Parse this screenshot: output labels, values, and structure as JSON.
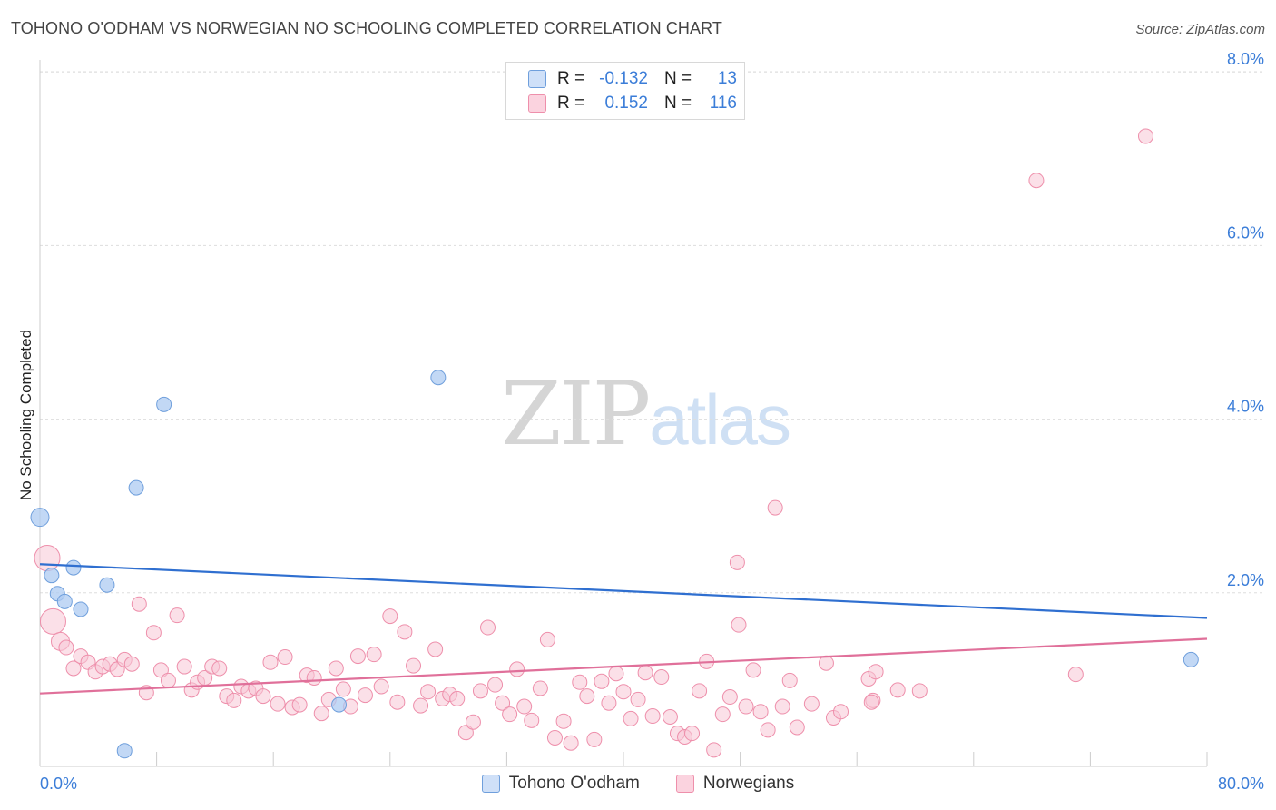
{
  "header": {
    "title": "TOHONO O'ODHAM VS NORWEGIAN NO SCHOOLING COMPLETED CORRELATION CHART",
    "source": "Source: ZipAtlas.com"
  },
  "watermark": {
    "part1": "ZIP",
    "part2": "atlas"
  },
  "legend": {
    "rows": [
      {
        "r_label": "R =",
        "r_value": "-0.132",
        "n_label": "N =",
        "n_value": "13",
        "color": "#aecbf2"
      },
      {
        "r_label": "R =",
        "r_value": "0.152",
        "n_label": "N =",
        "n_value": "116",
        "color": "#f8bfd0"
      }
    ]
  },
  "bottom_legend": {
    "items": [
      {
        "label": "Tohono O'odham",
        "color": "#aecbf2"
      },
      {
        "label": "Norwegians",
        "color": "#f8bfd0"
      }
    ]
  },
  "chart_data": {
    "type": "scatter",
    "title": "TOHONO O'ODHAM VS NORWEGIAN NO SCHOOLING COMPLETED CORRELATION CHART",
    "xlabel": "",
    "ylabel": "No Schooling Completed",
    "xlim": [
      0,
      80
    ],
    "ylim": [
      0,
      8.4
    ],
    "x_tick_labels": [
      "0.0%",
      "80.0%"
    ],
    "y_ticks": [
      2,
      4,
      6,
      8
    ],
    "y_tick_labels": [
      "2.0%",
      "4.0%",
      "6.0%",
      "8.0%"
    ],
    "grid": true,
    "colors": {
      "tohono_fill": "#aecbf2",
      "tohono_stroke": "#6f9fdc",
      "tohono_line": "#2f6fd0",
      "norw_fill": "#f8c6d5",
      "norw_stroke": "#ee8fab",
      "norw_line": "#e0709a",
      "axis": "#cccccc",
      "grid": "#dddddd"
    },
    "series": [
      {
        "name": "Tohono O'odham",
        "trend": {
          "x": [
            0,
            80
          ],
          "y": [
            2.33,
            1.71
          ]
        },
        "points": [
          {
            "x": 0.0,
            "y": 2.87,
            "s": 2
          },
          {
            "x": 0.8,
            "y": 2.2,
            "s": 1
          },
          {
            "x": 1.2,
            "y": 1.99,
            "s": 1
          },
          {
            "x": 1.7,
            "y": 1.9,
            "s": 1
          },
          {
            "x": 2.3,
            "y": 2.29,
            "s": 1
          },
          {
            "x": 2.8,
            "y": 1.81,
            "s": 1
          },
          {
            "x": 4.6,
            "y": 2.09,
            "s": 1
          },
          {
            "x": 5.8,
            "y": 0.18,
            "s": 1
          },
          {
            "x": 6.6,
            "y": 3.21,
            "s": 1
          },
          {
            "x": 8.5,
            "y": 4.17,
            "s": 1
          },
          {
            "x": 20.5,
            "y": 0.71,
            "s": 1
          },
          {
            "x": 27.3,
            "y": 4.48,
            "s": 1
          },
          {
            "x": 78.9,
            "y": 1.23,
            "s": 1
          }
        ]
      },
      {
        "name": "Norwegians",
        "trend": {
          "x": [
            0,
            80
          ],
          "y": [
            0.84,
            1.47
          ]
        },
        "points": [
          {
            "x": 0.5,
            "y": 2.4,
            "s": 3
          },
          {
            "x": 0.9,
            "y": 1.67,
            "s": 3
          },
          {
            "x": 1.4,
            "y": 1.44,
            "s": 2
          },
          {
            "x": 1.8,
            "y": 1.37,
            "s": 1
          },
          {
            "x": 2.3,
            "y": 1.13,
            "s": 1
          },
          {
            "x": 2.8,
            "y": 1.27,
            "s": 1
          },
          {
            "x": 3.3,
            "y": 1.2,
            "s": 1
          },
          {
            "x": 3.8,
            "y": 1.09,
            "s": 1
          },
          {
            "x": 4.3,
            "y": 1.15,
            "s": 1
          },
          {
            "x": 4.8,
            "y": 1.18,
            "s": 1
          },
          {
            "x": 5.3,
            "y": 1.12,
            "s": 1
          },
          {
            "x": 5.8,
            "y": 1.23,
            "s": 1
          },
          {
            "x": 6.3,
            "y": 1.18,
            "s": 1
          },
          {
            "x": 6.8,
            "y": 1.87,
            "s": 1
          },
          {
            "x": 7.3,
            "y": 0.85,
            "s": 1
          },
          {
            "x": 7.8,
            "y": 1.54,
            "s": 1
          },
          {
            "x": 8.3,
            "y": 1.11,
            "s": 1
          },
          {
            "x": 8.8,
            "y": 0.99,
            "s": 1
          },
          {
            "x": 9.4,
            "y": 1.74,
            "s": 1
          },
          {
            "x": 9.9,
            "y": 1.15,
            "s": 1
          },
          {
            "x": 10.4,
            "y": 0.88,
            "s": 1
          },
          {
            "x": 10.8,
            "y": 0.97,
            "s": 1
          },
          {
            "x": 11.3,
            "y": 1.02,
            "s": 1
          },
          {
            "x": 11.8,
            "y": 1.15,
            "s": 1
          },
          {
            "x": 12.3,
            "y": 1.13,
            "s": 1
          },
          {
            "x": 12.8,
            "y": 0.81,
            "s": 1
          },
          {
            "x": 13.3,
            "y": 0.76,
            "s": 1
          },
          {
            "x": 13.8,
            "y": 0.92,
            "s": 1
          },
          {
            "x": 14.3,
            "y": 0.87,
            "s": 1
          },
          {
            "x": 14.8,
            "y": 0.9,
            "s": 1
          },
          {
            "x": 15.3,
            "y": 0.81,
            "s": 1
          },
          {
            "x": 15.8,
            "y": 1.2,
            "s": 1
          },
          {
            "x": 16.3,
            "y": 0.72,
            "s": 1
          },
          {
            "x": 16.8,
            "y": 1.26,
            "s": 1
          },
          {
            "x": 17.3,
            "y": 0.68,
            "s": 1
          },
          {
            "x": 17.8,
            "y": 0.71,
            "s": 1
          },
          {
            "x": 18.3,
            "y": 1.05,
            "s": 1
          },
          {
            "x": 18.8,
            "y": 1.02,
            "s": 1
          },
          {
            "x": 19.3,
            "y": 0.61,
            "s": 1
          },
          {
            "x": 19.8,
            "y": 0.77,
            "s": 1
          },
          {
            "x": 20.3,
            "y": 1.13,
            "s": 1
          },
          {
            "x": 20.8,
            "y": 0.89,
            "s": 1
          },
          {
            "x": 21.3,
            "y": 0.69,
            "s": 1
          },
          {
            "x": 21.8,
            "y": 1.27,
            "s": 1
          },
          {
            "x": 22.3,
            "y": 0.82,
            "s": 1
          },
          {
            "x": 22.9,
            "y": 1.29,
            "s": 1
          },
          {
            "x": 23.4,
            "y": 0.92,
            "s": 1
          },
          {
            "x": 24.0,
            "y": 1.73,
            "s": 1
          },
          {
            "x": 24.5,
            "y": 0.74,
            "s": 1
          },
          {
            "x": 25.0,
            "y": 1.55,
            "s": 1
          },
          {
            "x": 25.6,
            "y": 1.16,
            "s": 1
          },
          {
            "x": 26.1,
            "y": 0.7,
            "s": 1
          },
          {
            "x": 26.6,
            "y": 0.86,
            "s": 1
          },
          {
            "x": 27.1,
            "y": 1.35,
            "s": 1
          },
          {
            "x": 27.6,
            "y": 0.78,
            "s": 1
          },
          {
            "x": 28.1,
            "y": 0.83,
            "s": 1
          },
          {
            "x": 28.6,
            "y": 0.78,
            "s": 1
          },
          {
            "x": 29.2,
            "y": 0.39,
            "s": 1
          },
          {
            "x": 29.7,
            "y": 0.51,
            "s": 1
          },
          {
            "x": 30.2,
            "y": 0.87,
            "s": 1
          },
          {
            "x": 30.7,
            "y": 1.6,
            "s": 1
          },
          {
            "x": 31.2,
            "y": 0.94,
            "s": 1
          },
          {
            "x": 31.7,
            "y": 0.73,
            "s": 1
          },
          {
            "x": 32.2,
            "y": 0.6,
            "s": 1
          },
          {
            "x": 32.7,
            "y": 1.12,
            "s": 1
          },
          {
            "x": 33.2,
            "y": 0.69,
            "s": 1
          },
          {
            "x": 33.7,
            "y": 0.53,
            "s": 1
          },
          {
            "x": 34.3,
            "y": 0.9,
            "s": 1
          },
          {
            "x": 34.8,
            "y": 1.46,
            "s": 1
          },
          {
            "x": 35.3,
            "y": 0.33,
            "s": 1
          },
          {
            "x": 35.9,
            "y": 0.52,
            "s": 1
          },
          {
            "x": 36.4,
            "y": 0.27,
            "s": 1
          },
          {
            "x": 37.0,
            "y": 0.97,
            "s": 1
          },
          {
            "x": 37.5,
            "y": 0.81,
            "s": 1
          },
          {
            "x": 38.0,
            "y": 0.31,
            "s": 1
          },
          {
            "x": 38.5,
            "y": 0.98,
            "s": 1
          },
          {
            "x": 39.0,
            "y": 0.73,
            "s": 1
          },
          {
            "x": 39.5,
            "y": 1.07,
            "s": 1
          },
          {
            "x": 40.0,
            "y": 0.86,
            "s": 1
          },
          {
            "x": 40.5,
            "y": 0.55,
            "s": 1
          },
          {
            "x": 41.0,
            "y": 0.77,
            "s": 1
          },
          {
            "x": 41.5,
            "y": 1.08,
            "s": 1
          },
          {
            "x": 42.0,
            "y": 0.58,
            "s": 1
          },
          {
            "x": 42.6,
            "y": 1.03,
            "s": 1
          },
          {
            "x": 43.2,
            "y": 0.57,
            "s": 1
          },
          {
            "x": 43.7,
            "y": 0.38,
            "s": 1
          },
          {
            "x": 44.2,
            "y": 0.34,
            "s": 1
          },
          {
            "x": 44.7,
            "y": 0.38,
            "s": 1
          },
          {
            "x": 45.2,
            "y": 0.87,
            "s": 1
          },
          {
            "x": 45.7,
            "y": 1.21,
            "s": 1
          },
          {
            "x": 46.2,
            "y": 0.19,
            "s": 1
          },
          {
            "x": 46.8,
            "y": 0.6,
            "s": 1
          },
          {
            "x": 47.3,
            "y": 0.8,
            "s": 1
          },
          {
            "x": 47.8,
            "y": 2.35,
            "s": 1
          },
          {
            "x": 47.9,
            "y": 1.63,
            "s": 1
          },
          {
            "x": 48.4,
            "y": 0.69,
            "s": 1
          },
          {
            "x": 48.9,
            "y": 1.11,
            "s": 1
          },
          {
            "x": 49.4,
            "y": 0.63,
            "s": 1
          },
          {
            "x": 49.9,
            "y": 0.42,
            "s": 1
          },
          {
            "x": 50.4,
            "y": 2.98,
            "s": 1
          },
          {
            "x": 50.9,
            "y": 0.69,
            "s": 1
          },
          {
            "x": 51.4,
            "y": 0.99,
            "s": 1
          },
          {
            "x": 51.9,
            "y": 0.45,
            "s": 1
          },
          {
            "x": 52.9,
            "y": 0.72,
            "s": 1
          },
          {
            "x": 53.9,
            "y": 1.19,
            "s": 1
          },
          {
            "x": 54.4,
            "y": 0.56,
            "s": 1
          },
          {
            "x": 54.9,
            "y": 0.63,
            "s": 1
          },
          {
            "x": 56.8,
            "y": 1.01,
            "s": 1
          },
          {
            "x": 57.3,
            "y": 1.09,
            "s": 1
          },
          {
            "x": 57.1,
            "y": 0.76,
            "s": 1
          },
          {
            "x": 57.0,
            "y": 0.74,
            "s": 1
          },
          {
            "x": 58.8,
            "y": 0.88,
            "s": 1
          },
          {
            "x": 60.3,
            "y": 0.87,
            "s": 1
          },
          {
            "x": 71.0,
            "y": 1.06,
            "s": 1
          },
          {
            "x": 68.3,
            "y": 6.75,
            "s": 1
          },
          {
            "x": 75.8,
            "y": 7.26,
            "s": 1
          }
        ]
      }
    ]
  }
}
